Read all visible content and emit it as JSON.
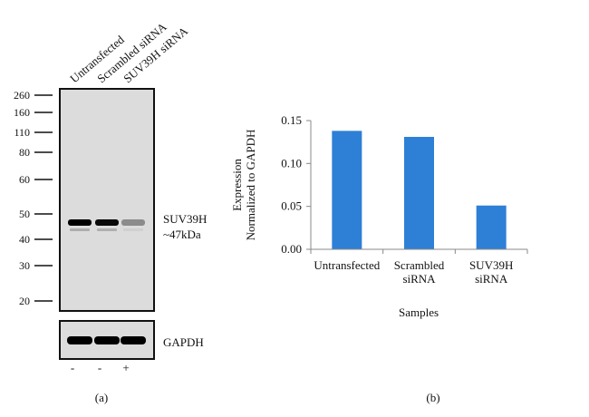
{
  "panel_a": {
    "label": "(a)",
    "lanes": [
      "Untransfected",
      "Scrambled siRNA",
      "SUV39H siRNA"
    ],
    "markers": [
      "260",
      "160",
      "110",
      "80",
      "60",
      "50",
      "40",
      "30",
      "20"
    ],
    "target_label": "SUV39H",
    "target_size": "~47kDa",
    "loading_control": "GAPDH",
    "treatment": [
      "-",
      "-",
      "+"
    ],
    "target_band_intensity": [
      1.0,
      0.95,
      0.25
    ],
    "control_band_intensity": [
      1.0,
      1.0,
      1.0
    ]
  },
  "panel_b": {
    "label": "(b)"
  },
  "chart_data": {
    "type": "bar",
    "categories": [
      "Untransfected",
      "Scrambled siRNA",
      "SUV39H siRNA"
    ],
    "category_lines": [
      [
        "Untransfected"
      ],
      [
        "Scrambled",
        "siRNA"
      ],
      [
        "SUV39H",
        "siRNA"
      ]
    ],
    "values": [
      0.138,
      0.131,
      0.051
    ],
    "xlabel": "Samples",
    "ylabel_lines": [
      "Expression",
      "Normalized to GAPDH"
    ],
    "ylim": [
      0,
      0.15
    ],
    "yticks": [
      "0.00",
      "0.05",
      "0.10",
      "0.15"
    ],
    "grid": false,
    "bar_color": "#2e7fd6"
  }
}
